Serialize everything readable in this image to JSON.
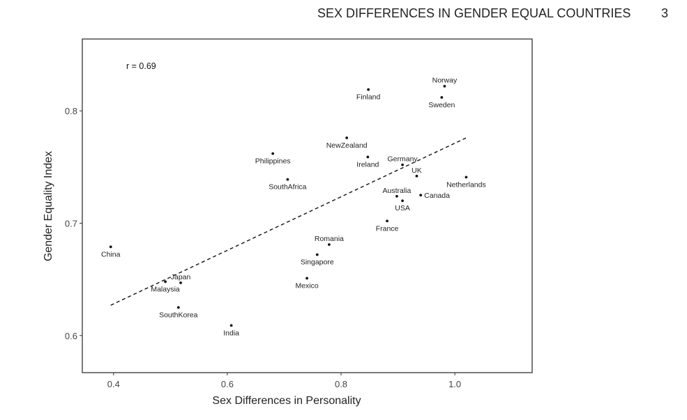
{
  "page": {
    "running_head": "SEX DIFFERENCES IN GENDER EQUAL COUNTRIES",
    "page_number": "3"
  },
  "chart_data": {
    "type": "scatter",
    "title": "",
    "xlabel": "Sex Differences in Personality",
    "ylabel": "Gender Equality Index",
    "xlim": [
      0.345,
      1.136
    ],
    "ylim": [
      0.567,
      0.864
    ],
    "xticks": [
      0.4,
      0.6,
      0.8,
      1.0
    ],
    "xtick_labels": [
      "0.4",
      "0.6",
      "0.8",
      "1.0"
    ],
    "yticks": [
      0.6,
      0.7,
      0.8
    ],
    "ytick_labels": [
      "0.6",
      "0.7",
      "0.8"
    ],
    "grid": false,
    "annotation": "r = 0.69",
    "points": [
      {
        "label": "China",
        "x": 0.395,
        "y": 0.679
      },
      {
        "label": "Malaysia",
        "x": 0.491,
        "y": 0.648
      },
      {
        "label": "Japan",
        "x": 0.518,
        "y": 0.647
      },
      {
        "label": "SouthKorea",
        "x": 0.514,
        "y": 0.625
      },
      {
        "label": "India",
        "x": 0.607,
        "y": 0.609
      },
      {
        "label": "Philippines",
        "x": 0.68,
        "y": 0.762
      },
      {
        "label": "SouthAfrica",
        "x": 0.706,
        "y": 0.739
      },
      {
        "label": "Mexico",
        "x": 0.74,
        "y": 0.651
      },
      {
        "label": "Singapore",
        "x": 0.758,
        "y": 0.672
      },
      {
        "label": "Romania",
        "x": 0.779,
        "y": 0.681
      },
      {
        "label": "NewZealand",
        "x": 0.81,
        "y": 0.776
      },
      {
        "label": "Ireland",
        "x": 0.847,
        "y": 0.759
      },
      {
        "label": "Finland",
        "x": 0.848,
        "y": 0.819
      },
      {
        "label": "France",
        "x": 0.881,
        "y": 0.702
      },
      {
        "label": "Australia",
        "x": 0.898,
        "y": 0.724
      },
      {
        "label": "USA",
        "x": 0.908,
        "y": 0.72
      },
      {
        "label": "Germany",
        "x": 0.908,
        "y": 0.752
      },
      {
        "label": "UK",
        "x": 0.933,
        "y": 0.742
      },
      {
        "label": "Canada",
        "x": 0.94,
        "y": 0.725
      },
      {
        "label": "Sweden",
        "x": 0.977,
        "y": 0.812
      },
      {
        "label": "Norway",
        "x": 0.982,
        "y": 0.822
      },
      {
        "label": "Netherlands",
        "x": 1.02,
        "y": 0.741
      }
    ],
    "regression_line": {
      "style": "dashed",
      "x": [
        0.395,
        1.02
      ],
      "y": [
        0.627,
        0.776
      ]
    },
    "colors": {
      "points": "#111111",
      "line": "#111111",
      "frame": "#333333"
    }
  }
}
